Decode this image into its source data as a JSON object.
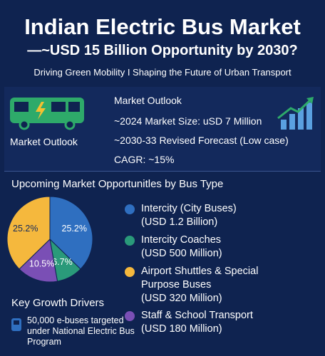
{
  "header": {
    "title": "Indian Electric Bus Market",
    "subtitle": "—~USD 15 Billion Opportunity by 2030?",
    "tagline": "Driving Green Mobility I Shaping the Future of Urban Transport"
  },
  "outlook": {
    "icon_label": "Market Outlook",
    "heading": "Market Outlook",
    "items": [
      "~2024 Market Size: uSD 7 Million",
      "~2030-33 Revised Forecast (Low case)",
      "CAGR: ~15%"
    ]
  },
  "chart_data": {
    "type": "pie",
    "title": "Upcoming Market Opportunitles by Bus Type",
    "categories": [
      "Intercity (City Buses)",
      "Intercity Coaches",
      "Airport Shuttles & Special Purpose Buses",
      "Staff & School Transport"
    ],
    "details": [
      "(USD 1.2 Billion)",
      "(USD 500 Million)",
      "(USD 320 Million)",
      "(USD 180 Million)"
    ],
    "values": [
      25.2,
      6.7,
      25.2,
      10.5
    ],
    "value_labels": [
      "25.2%",
      "6.7%",
      "25.2%",
      "10.5%"
    ],
    "colors": [
      "#2f6fc0",
      "#2a9a7a",
      "#f5b83d",
      "#7a4fb5"
    ]
  },
  "drivers": {
    "heading": "Key Growth Drivers",
    "items": [
      "50,000 e-buses targeted under National Electric Bus Program"
    ]
  }
}
